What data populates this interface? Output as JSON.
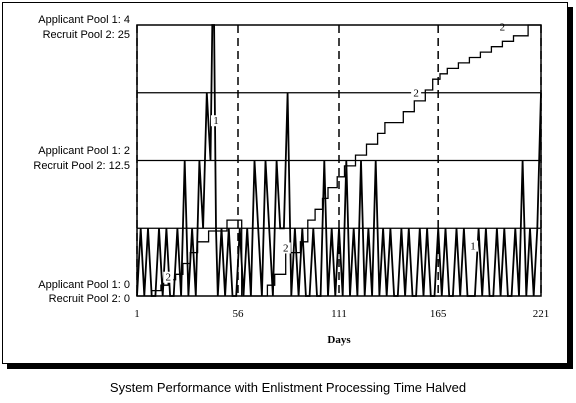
{
  "caption": "System Performance with Enlistment Processing Time Halved",
  "chart_data": {
    "type": "line",
    "xlabel": "Days",
    "x_ticks": [
      "1",
      "56",
      "111",
      "165",
      "221"
    ],
    "xlim": [
      1,
      221
    ],
    "y_axis_labels": [
      {
        "applicant": "Applicant Pool 1:  4",
        "recruit": "Recruit Pool 2:  25"
      },
      {
        "applicant": "Applicant Pool 1:  2",
        "recruit": "Recruit Pool 2:  12.5"
      },
      {
        "applicant": "Applicant Pool 1:  0",
        "recruit": "Recruit Pool 2:  0"
      }
    ],
    "applicant_ylim": [
      0,
      4
    ],
    "recruit_ylim": [
      0,
      25
    ],
    "series": [
      {
        "name": "1",
        "scale": "applicant",
        "style": "oscillating",
        "x": [
          1,
          3,
          5,
          7,
          9,
          11,
          13,
          15,
          17,
          19,
          21,
          23,
          25,
          27,
          29,
          31,
          33,
          35,
          37,
          39,
          41,
          42,
          43,
          44,
          45,
          47,
          49,
          51,
          53,
          55,
          57,
          59,
          61,
          63,
          65,
          67,
          69,
          71,
          73,
          75,
          77,
          79,
          81,
          83,
          85,
          87,
          89,
          91,
          93,
          95,
          97,
          99,
          101,
          103,
          105,
          107,
          109,
          111,
          113,
          115,
          117,
          119,
          121,
          123,
          125,
          127,
          129,
          131,
          133,
          135,
          137,
          139,
          141,
          143,
          145,
          147,
          149,
          151,
          153,
          155,
          157,
          159,
          161,
          163,
          165,
          167,
          169,
          171,
          173,
          175,
          177,
          179,
          181,
          183,
          185,
          187,
          189,
          191,
          193,
          195,
          197,
          199,
          201,
          203,
          205,
          207,
          209,
          211,
          213,
          215,
          217,
          219,
          221
        ],
        "y": [
          0,
          1,
          0,
          1,
          0,
          0,
          1,
          0,
          1,
          0,
          0,
          1,
          0,
          2,
          0,
          1,
          0,
          2,
          1,
          3,
          2,
          4,
          4,
          1,
          0,
          1,
          0,
          1,
          0,
          0,
          1,
          0,
          1,
          0,
          2,
          1,
          0,
          2,
          1,
          0,
          2,
          1,
          1,
          3,
          0,
          1,
          0,
          1,
          0,
          0,
          1,
          0,
          0,
          2,
          0,
          1,
          0,
          1,
          0,
          2,
          0,
          1,
          0,
          2,
          0,
          1,
          0,
          2,
          0,
          1,
          0,
          1,
          0,
          0,
          1,
          0,
          1,
          0,
          0,
          1,
          0,
          1,
          0,
          0,
          1,
          0,
          1,
          0,
          0,
          1,
          0,
          1,
          0,
          0,
          0,
          1,
          0,
          1,
          0,
          0,
          1,
          0,
          1,
          0,
          0,
          1,
          0,
          2,
          0,
          1,
          0,
          1,
          3
        ]
      },
      {
        "name": "2",
        "scale": "recruit",
        "style": "step",
        "x": [
          1,
          9,
          14,
          18,
          22,
          26,
          30,
          34,
          40,
          50,
          58,
          70,
          72,
          76,
          82,
          90,
          94,
          98,
          102,
          105,
          110,
          114,
          120,
          126,
          132,
          136,
          146,
          152,
          158,
          162,
          166,
          170,
          176,
          182,
          188,
          194,
          200,
          206,
          214,
          221
        ],
        "y": [
          0,
          0.5,
          1,
          1.5,
          2,
          3,
          4,
          5,
          6,
          7,
          0,
          0,
          1,
          2,
          4,
          5,
          7,
          8,
          9,
          10,
          11,
          12,
          13,
          14,
          15,
          16,
          17,
          18,
          19,
          20,
          20.5,
          21,
          21.5,
          22,
          22.5,
          23,
          23.5,
          24,
          25,
          25
        ]
      }
    ],
    "series_labels": [
      {
        "text": "1",
        "x": 44,
        "y": 2.55
      },
      {
        "text": "1",
        "x": 184,
        "y": 0.7
      },
      {
        "text": "2",
        "x": 18,
        "y": 1.5
      },
      {
        "text": "2",
        "x": 82,
        "y": 4.2
      },
      {
        "text": "2",
        "x": 153,
        "y": 18.5
      },
      {
        "text": "2",
        "x": 200,
        "y": 24.6
      }
    ],
    "grid": true,
    "vertical_dashed_lines_at": [
      1,
      56,
      111,
      165,
      221
    ]
  }
}
